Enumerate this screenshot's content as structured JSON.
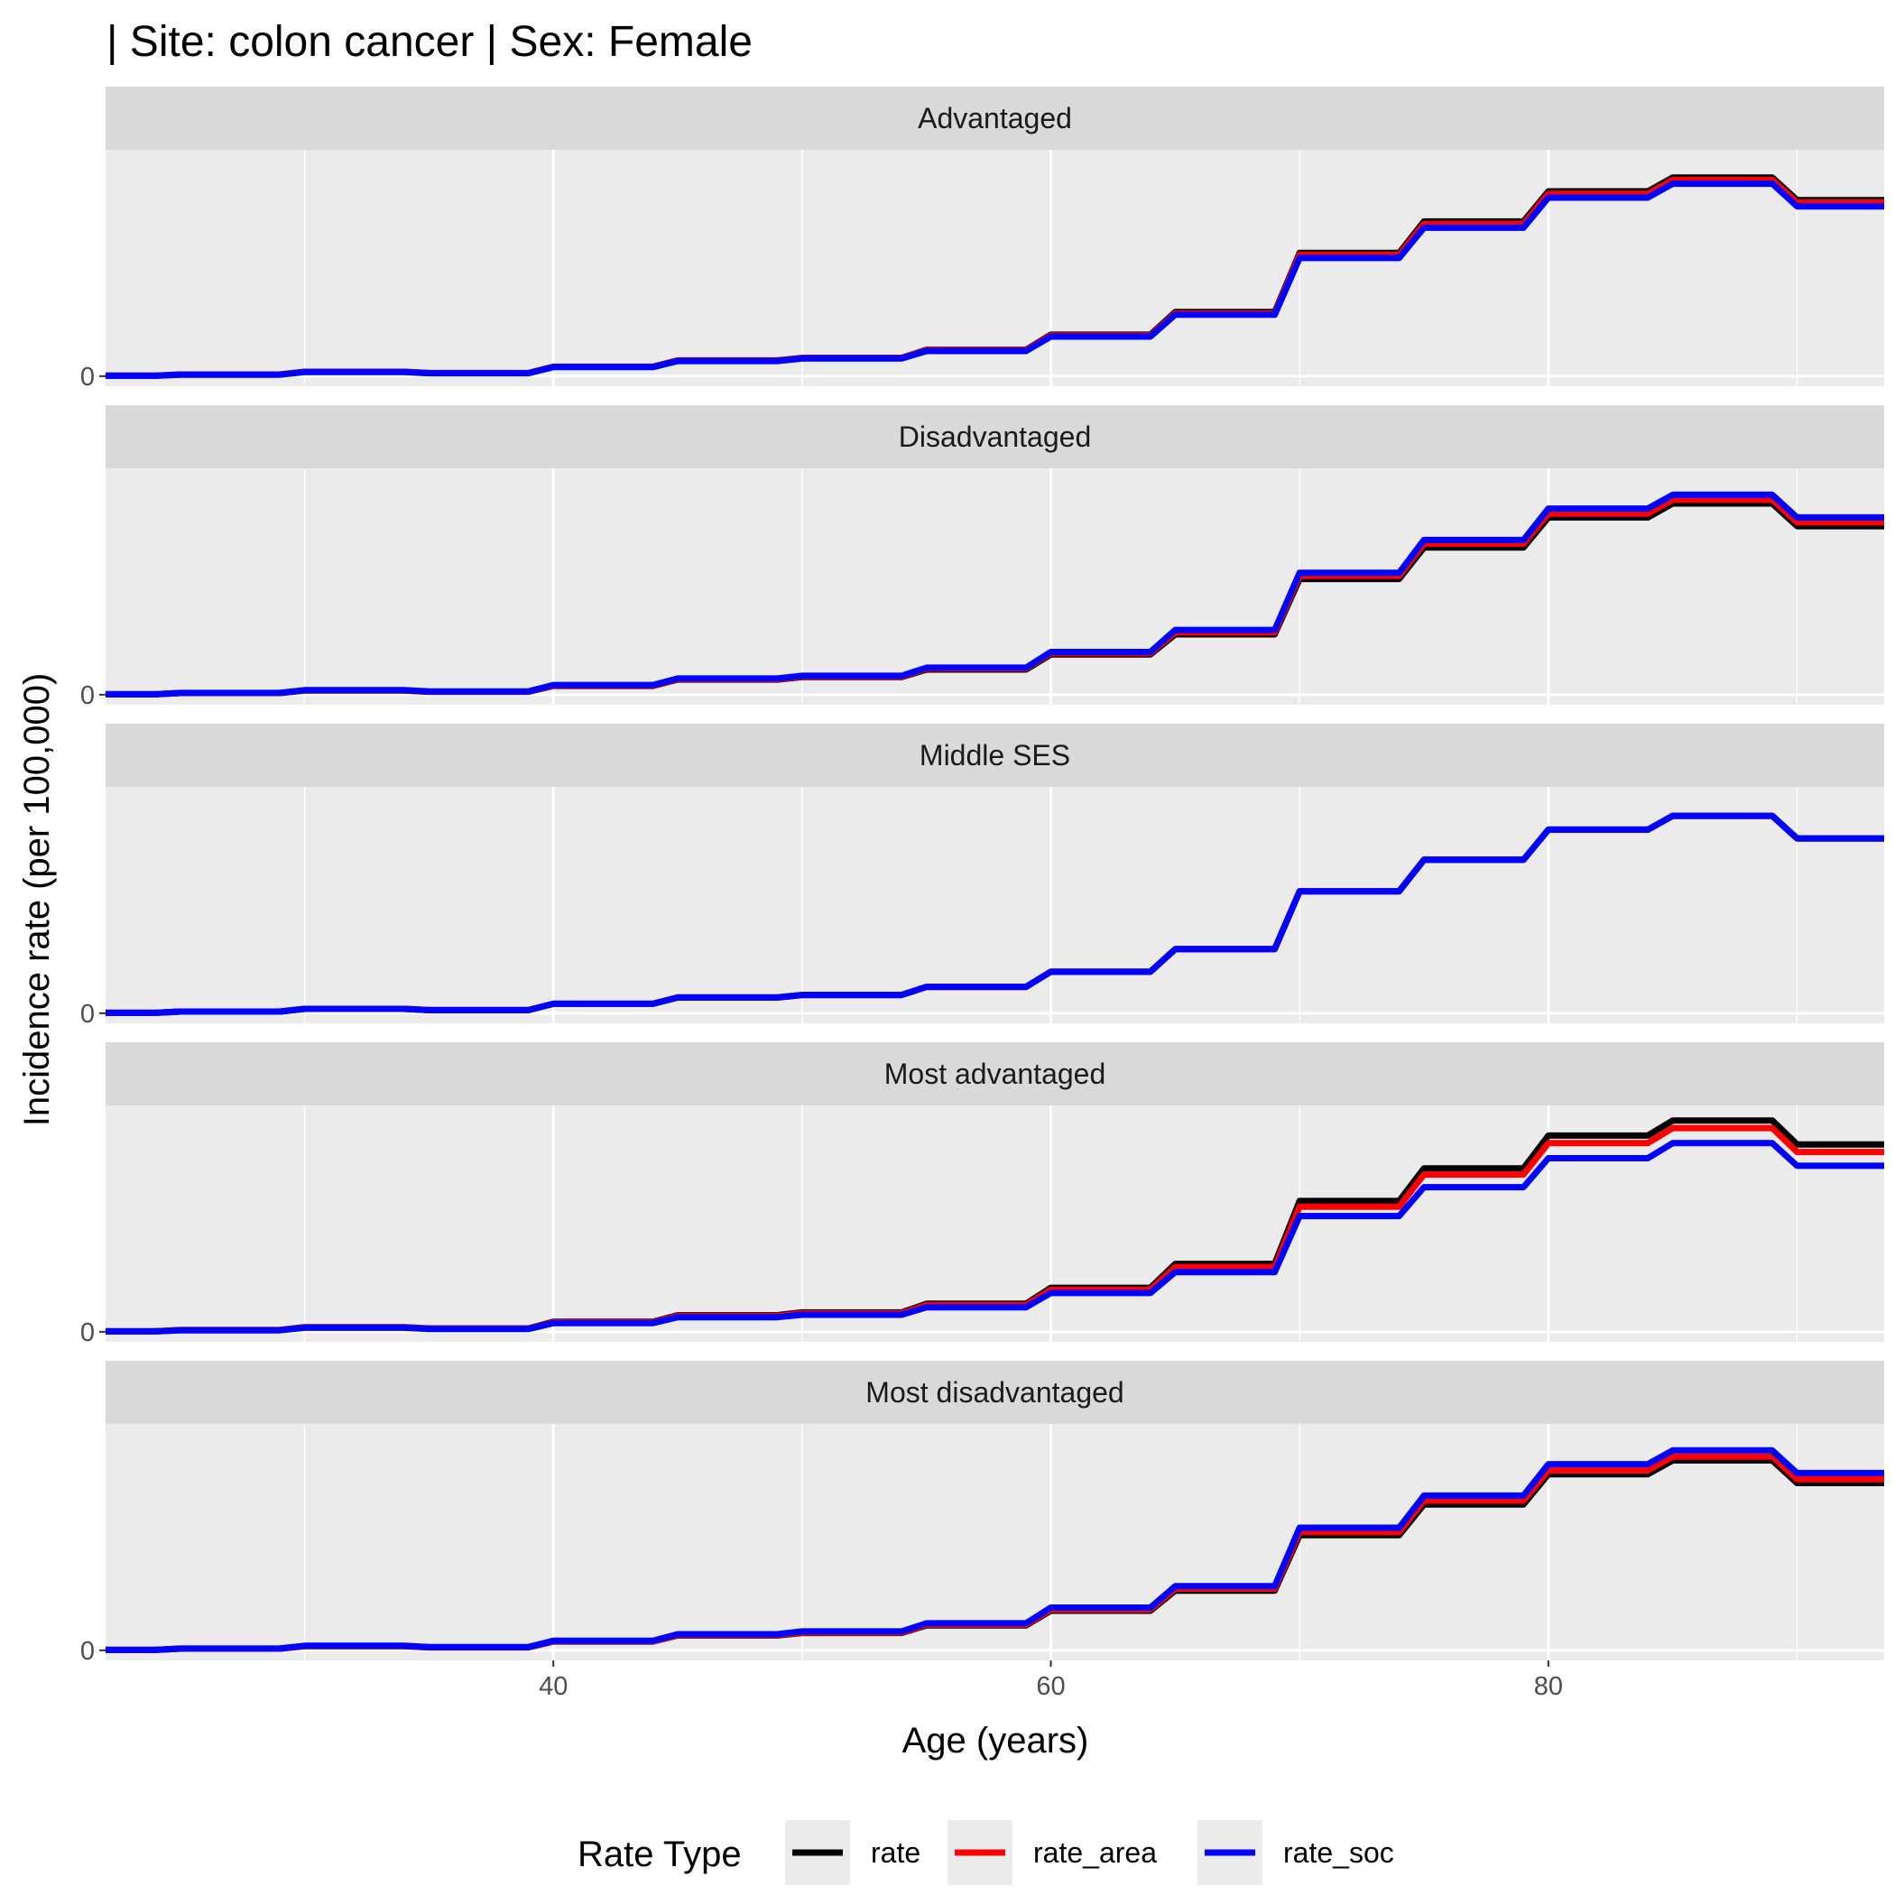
{
  "chart_data": {
    "type": "line",
    "title": "| Site: colon cancer | Sex: Female",
    "xlabel": "Age (years)",
    "ylabel": "Incidence rate (per 100,000)",
    "xlim": [
      22,
      93.5
    ],
    "x_ticks": [
      40,
      60,
      80
    ],
    "x_tick_labels": [
      "40",
      "60",
      "80"
    ],
    "y_tick_labels": [
      "0"
    ],
    "ylim": [
      -8,
      180
    ],
    "grid": true,
    "legend": {
      "position": "bottom",
      "title": "Rate Type",
      "entries": [
        "rate",
        "rate_area",
        "rate_soc"
      ]
    },
    "series_colors": {
      "rate": "#000000",
      "rate_area": "#ff0000",
      "rate_soc": "#0000ff"
    },
    "age_bands": [
      [
        22,
        24
      ],
      [
        25,
        29
      ],
      [
        30,
        34
      ],
      [
        35,
        39
      ],
      [
        40,
        44
      ],
      [
        45,
        49
      ],
      [
        50,
        54
      ],
      [
        55,
        59
      ],
      [
        60,
        64
      ],
      [
        65,
        69
      ],
      [
        70,
        74
      ],
      [
        75,
        79
      ],
      [
        80,
        84
      ],
      [
        85,
        89
      ],
      [
        90,
        93.5
      ]
    ],
    "panels": [
      {
        "label": "Advantaged",
        "series": [
          {
            "name": "rate",
            "values": [
              0.3,
              1.3,
              3.5,
              2.5,
              7.5,
              12.5,
              14.5,
              21,
              33,
              51,
              98,
              123,
              147,
              158,
              140
            ]
          },
          {
            "name": "rate_area",
            "values": [
              0.3,
              1.3,
              3.4,
              2.4,
              7.4,
              12.4,
              14.3,
              20.6,
              32.3,
              50,
              96.5,
              121,
              145,
              156,
              138
            ]
          },
          {
            "name": "rate_soc",
            "values": [
              0.3,
              1.2,
              3.3,
              2.3,
              7.2,
              12.0,
              14.0,
              20.0,
              31.5,
              48.8,
              94.0,
              118,
              142,
              153,
              135
            ]
          }
        ]
      },
      {
        "label": "Disadvantaged",
        "series": [
          {
            "name": "rate",
            "values": [
              0.3,
              1.3,
              3.3,
              2.3,
              7.0,
              12.0,
              14.0,
              20.0,
              32.0,
              48.0,
              92.0,
              117,
              141,
              152,
              134
            ]
          },
          {
            "name": "rate_area",
            "values": [
              0.3,
              1.3,
              3.4,
              2.4,
              7.3,
              12.4,
              14.5,
              20.8,
              33.0,
              49.5,
              94.5,
              120,
              144,
              155,
              137
            ]
          },
          {
            "name": "rate_soc",
            "values": [
              0.3,
              1.4,
              3.6,
              2.6,
              7.7,
              12.9,
              15.0,
              21.5,
              34.0,
              51.5,
              97.0,
              123,
              148,
              159,
              141
            ]
          }
        ]
      },
      {
        "label": "Middle SES",
        "series": [
          {
            "name": "rate",
            "values": [
              0.3,
              1.3,
              3.5,
              2.5,
              7.5,
              12.5,
              14.5,
              21,
              33,
              51,
              97,
              122,
              146,
              157,
              139
            ]
          },
          {
            "name": "rate_area",
            "values": [
              0.3,
              1.3,
              3.5,
              2.5,
              7.5,
              12.5,
              14.5,
              21,
              33,
              51,
              97,
              122,
              146,
              157,
              139
            ]
          },
          {
            "name": "rate_soc",
            "values": [
              0.3,
              1.3,
              3.5,
              2.5,
              7.5,
              12.5,
              14.5,
              21,
              33,
              51,
              97,
              122,
              146,
              157,
              139
            ]
          }
        ]
      },
      {
        "label": "Most advantaged",
        "series": [
          {
            "name": "rate",
            "values": [
              0.3,
              1.4,
              3.7,
              2.7,
              7.9,
              13.2,
              15.4,
              22.3,
              35.0,
              54.0,
              104,
              130,
              156,
              168,
              149
            ]
          },
          {
            "name": "rate_area",
            "values": [
              0.3,
              1.3,
              3.5,
              2.5,
              7.5,
              12.6,
              14.7,
              21.2,
              33.5,
              51.5,
              99.5,
              125,
              150,
              162,
              143
            ]
          },
          {
            "name": "rate_soc",
            "values": [
              0.3,
              1.2,
              3.2,
              2.2,
              6.9,
              11.6,
              13.5,
              19.5,
              30.8,
              47.5,
              92.0,
              115,
              138,
              150,
              132
            ]
          }
        ]
      },
      {
        "label": "Most disadvantaged",
        "series": [
          {
            "name": "rate",
            "values": [
              0.3,
              1.3,
              3.3,
              2.3,
              7.0,
              11.8,
              13.8,
              19.8,
              31.5,
              47.5,
              91.5,
              116,
              140,
              151,
              133
            ]
          },
          {
            "name": "rate_area",
            "values": [
              0.3,
              1.3,
              3.4,
              2.4,
              7.2,
              12.2,
              14.2,
              20.4,
              32.5,
              49.0,
              94.0,
              119,
              143,
              154,
              136
            ]
          },
          {
            "name": "rate_soc",
            "values": [
              0.3,
              1.4,
              3.6,
              2.6,
              7.6,
              12.8,
              15.0,
              21.5,
              34.0,
              51.0,
              97.5,
              123,
              148,
              159,
              141
            ]
          }
        ]
      }
    ]
  }
}
